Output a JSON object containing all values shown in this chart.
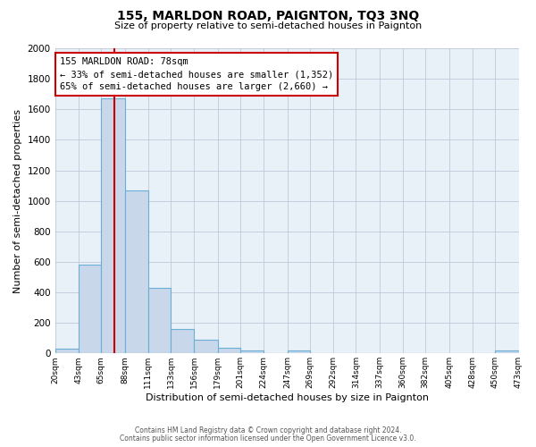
{
  "title": "155, MARLDON ROAD, PAIGNTON, TQ3 3NQ",
  "subtitle": "Size of property relative to semi-detached houses in Paignton",
  "xlabel": "Distribution of semi-detached houses by size in Paignton",
  "ylabel": "Number of semi-detached properties",
  "bin_edges": [
    20,
    43,
    65,
    88,
    111,
    133,
    156,
    179,
    201,
    224,
    247,
    269,
    292,
    314,
    337,
    360,
    382,
    405,
    428,
    450,
    473
  ],
  "bin_counts": [
    30,
    580,
    1670,
    1070,
    430,
    160,
    90,
    35,
    20,
    0,
    20,
    0,
    0,
    0,
    0,
    0,
    0,
    0,
    0,
    20
  ],
  "bar_color": "#c8d8ea",
  "bar_edge_color": "#6baed6",
  "property_size": 78,
  "property_line_color": "#cc0000",
  "annotation_line1": "155 MARLDON ROAD: 78sqm",
  "annotation_line2": "← 33% of semi-detached houses are smaller (1,352)",
  "annotation_line3": "65% of semi-detached houses are larger (2,660) →",
  "annotation_box_facecolor": "white",
  "annotation_box_edgecolor": "#cc0000",
  "ylim": [
    0,
    2000
  ],
  "yticks": [
    0,
    200,
    400,
    600,
    800,
    1000,
    1200,
    1400,
    1600,
    1800,
    2000
  ],
  "tick_labels": [
    "20sqm",
    "43sqm",
    "65sqm",
    "88sqm",
    "111sqm",
    "133sqm",
    "156sqm",
    "179sqm",
    "201sqm",
    "224sqm",
    "247sqm",
    "269sqm",
    "292sqm",
    "314sqm",
    "337sqm",
    "360sqm",
    "382sqm",
    "405sqm",
    "428sqm",
    "450sqm",
    "473sqm"
  ],
  "footer_line1": "Contains HM Land Registry data © Crown copyright and database right 2024.",
  "footer_line2": "Contains public sector information licensed under the Open Government Licence v3.0.",
  "fig_bg_color": "#ffffff",
  "plot_bg_color": "#e8f0f8",
  "grid_color": "#c0c8d8"
}
